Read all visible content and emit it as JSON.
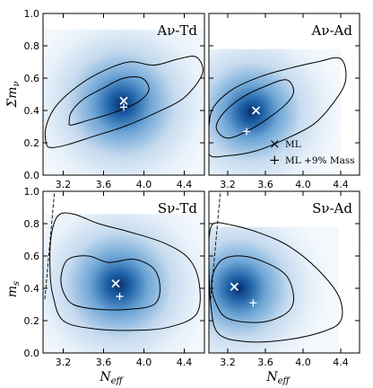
{
  "figure": {
    "xlabel_main": "N",
    "xlabel_sub": "eff",
    "top_ylabel_main": "Σm",
    "top_ylabel_sub": "ν",
    "bottom_ylabel_main": "m",
    "bottom_ylabel_sub": "s"
  },
  "legend": {
    "ml_marker": "×",
    "ml_label": "ML",
    "mass_marker": "+",
    "mass_label": "ML +9% Mass"
  },
  "chart_data": [
    {
      "type": "heatmap",
      "panel_label": "Aν-Td",
      "xlim": [
        3.0,
        4.6
      ],
      "ylim": [
        0.0,
        1.0
      ],
      "xticks": [
        "3.2",
        "3.6",
        "4.0",
        "4.4"
      ],
      "yticks": [
        "0.0",
        "0.2",
        "0.4",
        "0.6",
        "0.8",
        "1.0"
      ],
      "peak": {
        "x": 3.78,
        "y": 0.44
      },
      "density_extent": {
        "x": [
          3.0,
          4.6
        ],
        "y": [
          0.0,
          0.9
        ]
      },
      "ml_point": {
        "x": 3.8,
        "y": 0.46
      },
      "mass_point": {
        "x": 3.8,
        "y": 0.42
      },
      "contour_inner": [
        [
          3.28,
          0.31
        ],
        [
          3.45,
          0.34
        ],
        [
          3.62,
          0.37
        ],
        [
          3.8,
          0.41
        ],
        [
          3.96,
          0.46
        ],
        [
          4.05,
          0.53
        ],
        [
          3.98,
          0.6
        ],
        [
          3.8,
          0.6
        ],
        [
          3.6,
          0.54
        ],
        [
          3.4,
          0.47
        ],
        [
          3.28,
          0.39
        ],
        [
          3.26,
          0.33
        ]
      ],
      "contour_outer": [
        [
          3.08,
          0.17
        ],
        [
          3.25,
          0.19
        ],
        [
          3.5,
          0.24
        ],
        [
          3.8,
          0.3
        ],
        [
          4.1,
          0.38
        ],
        [
          4.4,
          0.48
        ],
        [
          4.58,
          0.63
        ],
        [
          4.52,
          0.73
        ],
        [
          4.35,
          0.72
        ],
        [
          4.1,
          0.68
        ],
        [
          3.85,
          0.7
        ],
        [
          3.55,
          0.63
        ],
        [
          3.3,
          0.53
        ],
        [
          3.12,
          0.42
        ],
        [
          3.03,
          0.3
        ],
        [
          3.03,
          0.2
        ]
      ]
    },
    {
      "type": "heatmap",
      "panel_label": "Aν-Ad",
      "xlim": [
        3.0,
        4.6
      ],
      "ylim": [
        0.0,
        1.0
      ],
      "xticks": [
        "3.2",
        "3.6",
        "4.0",
        "4.4"
      ],
      "yticks": [],
      "peak": {
        "x": 3.45,
        "y": 0.39
      },
      "density_extent": {
        "x": [
          3.0,
          4.4
        ],
        "y": [
          0.0,
          0.78
        ]
      },
      "ml_point": {
        "x": 3.5,
        "y": 0.4
      },
      "mass_point": {
        "x": 3.4,
        "y": 0.27
      },
      "contour_inner": [
        [
          3.12,
          0.25
        ],
        [
          3.22,
          0.23
        ],
        [
          3.4,
          0.27
        ],
        [
          3.6,
          0.34
        ],
        [
          3.82,
          0.44
        ],
        [
          3.9,
          0.52
        ],
        [
          3.82,
          0.59
        ],
        [
          3.6,
          0.55
        ],
        [
          3.38,
          0.49
        ],
        [
          3.18,
          0.4
        ],
        [
          3.08,
          0.31
        ]
      ],
      "contour_outer": [
        [
          3.0,
          0.13
        ],
        [
          3.2,
          0.12
        ],
        [
          3.5,
          0.15
        ],
        [
          3.8,
          0.22
        ],
        [
          4.1,
          0.31
        ],
        [
          4.3,
          0.43
        ],
        [
          4.45,
          0.58
        ],
        [
          4.4,
          0.72
        ],
        [
          4.15,
          0.7
        ],
        [
          3.85,
          0.66
        ],
        [
          3.55,
          0.61
        ],
        [
          3.25,
          0.53
        ],
        [
          3.05,
          0.42
        ],
        [
          3.0,
          0.3
        ]
      ]
    },
    {
      "type": "heatmap",
      "panel_label": "Sν-Td",
      "xlim": [
        3.0,
        4.6
      ],
      "ylim": [
        0.0,
        1.0
      ],
      "xticks": [
        "3.2",
        "3.6",
        "4.0",
        "4.4"
      ],
      "yticks": [
        "0.0",
        "0.2",
        "0.4",
        "0.6",
        "0.8",
        "1.0"
      ],
      "peak": {
        "x": 3.75,
        "y": 0.42
      },
      "density_extent": {
        "x": [
          3.0,
          4.6
        ],
        "y": [
          0.0,
          0.86
        ]
      },
      "ml_point": {
        "x": 3.72,
        "y": 0.43
      },
      "mass_point": {
        "x": 3.76,
        "y": 0.35
      },
      "contour_inner": [
        [
          3.2,
          0.38
        ],
        [
          3.3,
          0.3
        ],
        [
          3.55,
          0.27
        ],
        [
          3.85,
          0.27
        ],
        [
          4.1,
          0.3
        ],
        [
          4.16,
          0.4
        ],
        [
          4.1,
          0.52
        ],
        [
          3.9,
          0.58
        ],
        [
          3.65,
          0.56
        ],
        [
          3.45,
          0.6
        ],
        [
          3.25,
          0.58
        ],
        [
          3.18,
          0.48
        ]
      ],
      "contour_outer": [
        [
          3.07,
          0.5
        ],
        [
          3.1,
          0.35
        ],
        [
          3.2,
          0.2
        ],
        [
          3.5,
          0.15
        ],
        [
          3.9,
          0.14
        ],
        [
          4.25,
          0.16
        ],
        [
          4.52,
          0.24
        ],
        [
          4.55,
          0.42
        ],
        [
          4.45,
          0.58
        ],
        [
          4.2,
          0.68
        ],
        [
          3.85,
          0.75
        ],
        [
          3.55,
          0.8
        ],
        [
          3.3,
          0.86
        ],
        [
          3.15,
          0.85
        ],
        [
          3.08,
          0.72
        ]
      ]
    },
    {
      "type": "heatmap",
      "panel_label": "Sν-Ad",
      "xlim": [
        3.0,
        4.6
      ],
      "ylim": [
        0.0,
        1.0
      ],
      "xticks": [
        "3.2",
        "3.6",
        "4.0",
        "4.4"
      ],
      "yticks": [],
      "peak": {
        "x": 3.32,
        "y": 0.4
      },
      "density_extent": {
        "x": [
          3.0,
          4.38
        ],
        "y": [
          0.0,
          0.78
        ]
      },
      "ml_point": {
        "x": 3.27,
        "y": 0.41
      },
      "mass_point": {
        "x": 3.47,
        "y": 0.31
      },
      "contour_inner": [
        [
          3.03,
          0.4
        ],
        [
          3.08,
          0.3
        ],
        [
          3.18,
          0.22
        ],
        [
          3.4,
          0.19
        ],
        [
          3.65,
          0.2
        ],
        [
          3.85,
          0.26
        ],
        [
          3.9,
          0.35
        ],
        [
          3.82,
          0.48
        ],
        [
          3.6,
          0.56
        ],
        [
          3.35,
          0.6
        ],
        [
          3.15,
          0.58
        ],
        [
          3.05,
          0.5
        ]
      ],
      "contour_outer": [
        [
          3.0,
          0.55
        ],
        [
          3.02,
          0.3
        ],
        [
          3.1,
          0.12
        ],
        [
          3.4,
          0.07
        ],
        [
          3.8,
          0.08
        ],
        [
          4.2,
          0.13
        ],
        [
          4.4,
          0.2
        ],
        [
          4.38,
          0.35
        ],
        [
          4.15,
          0.52
        ],
        [
          3.85,
          0.66
        ],
        [
          3.55,
          0.74
        ],
        [
          3.25,
          0.79
        ],
        [
          3.05,
          0.8
        ],
        [
          3.0,
          0.7
        ]
      ]
    }
  ]
}
